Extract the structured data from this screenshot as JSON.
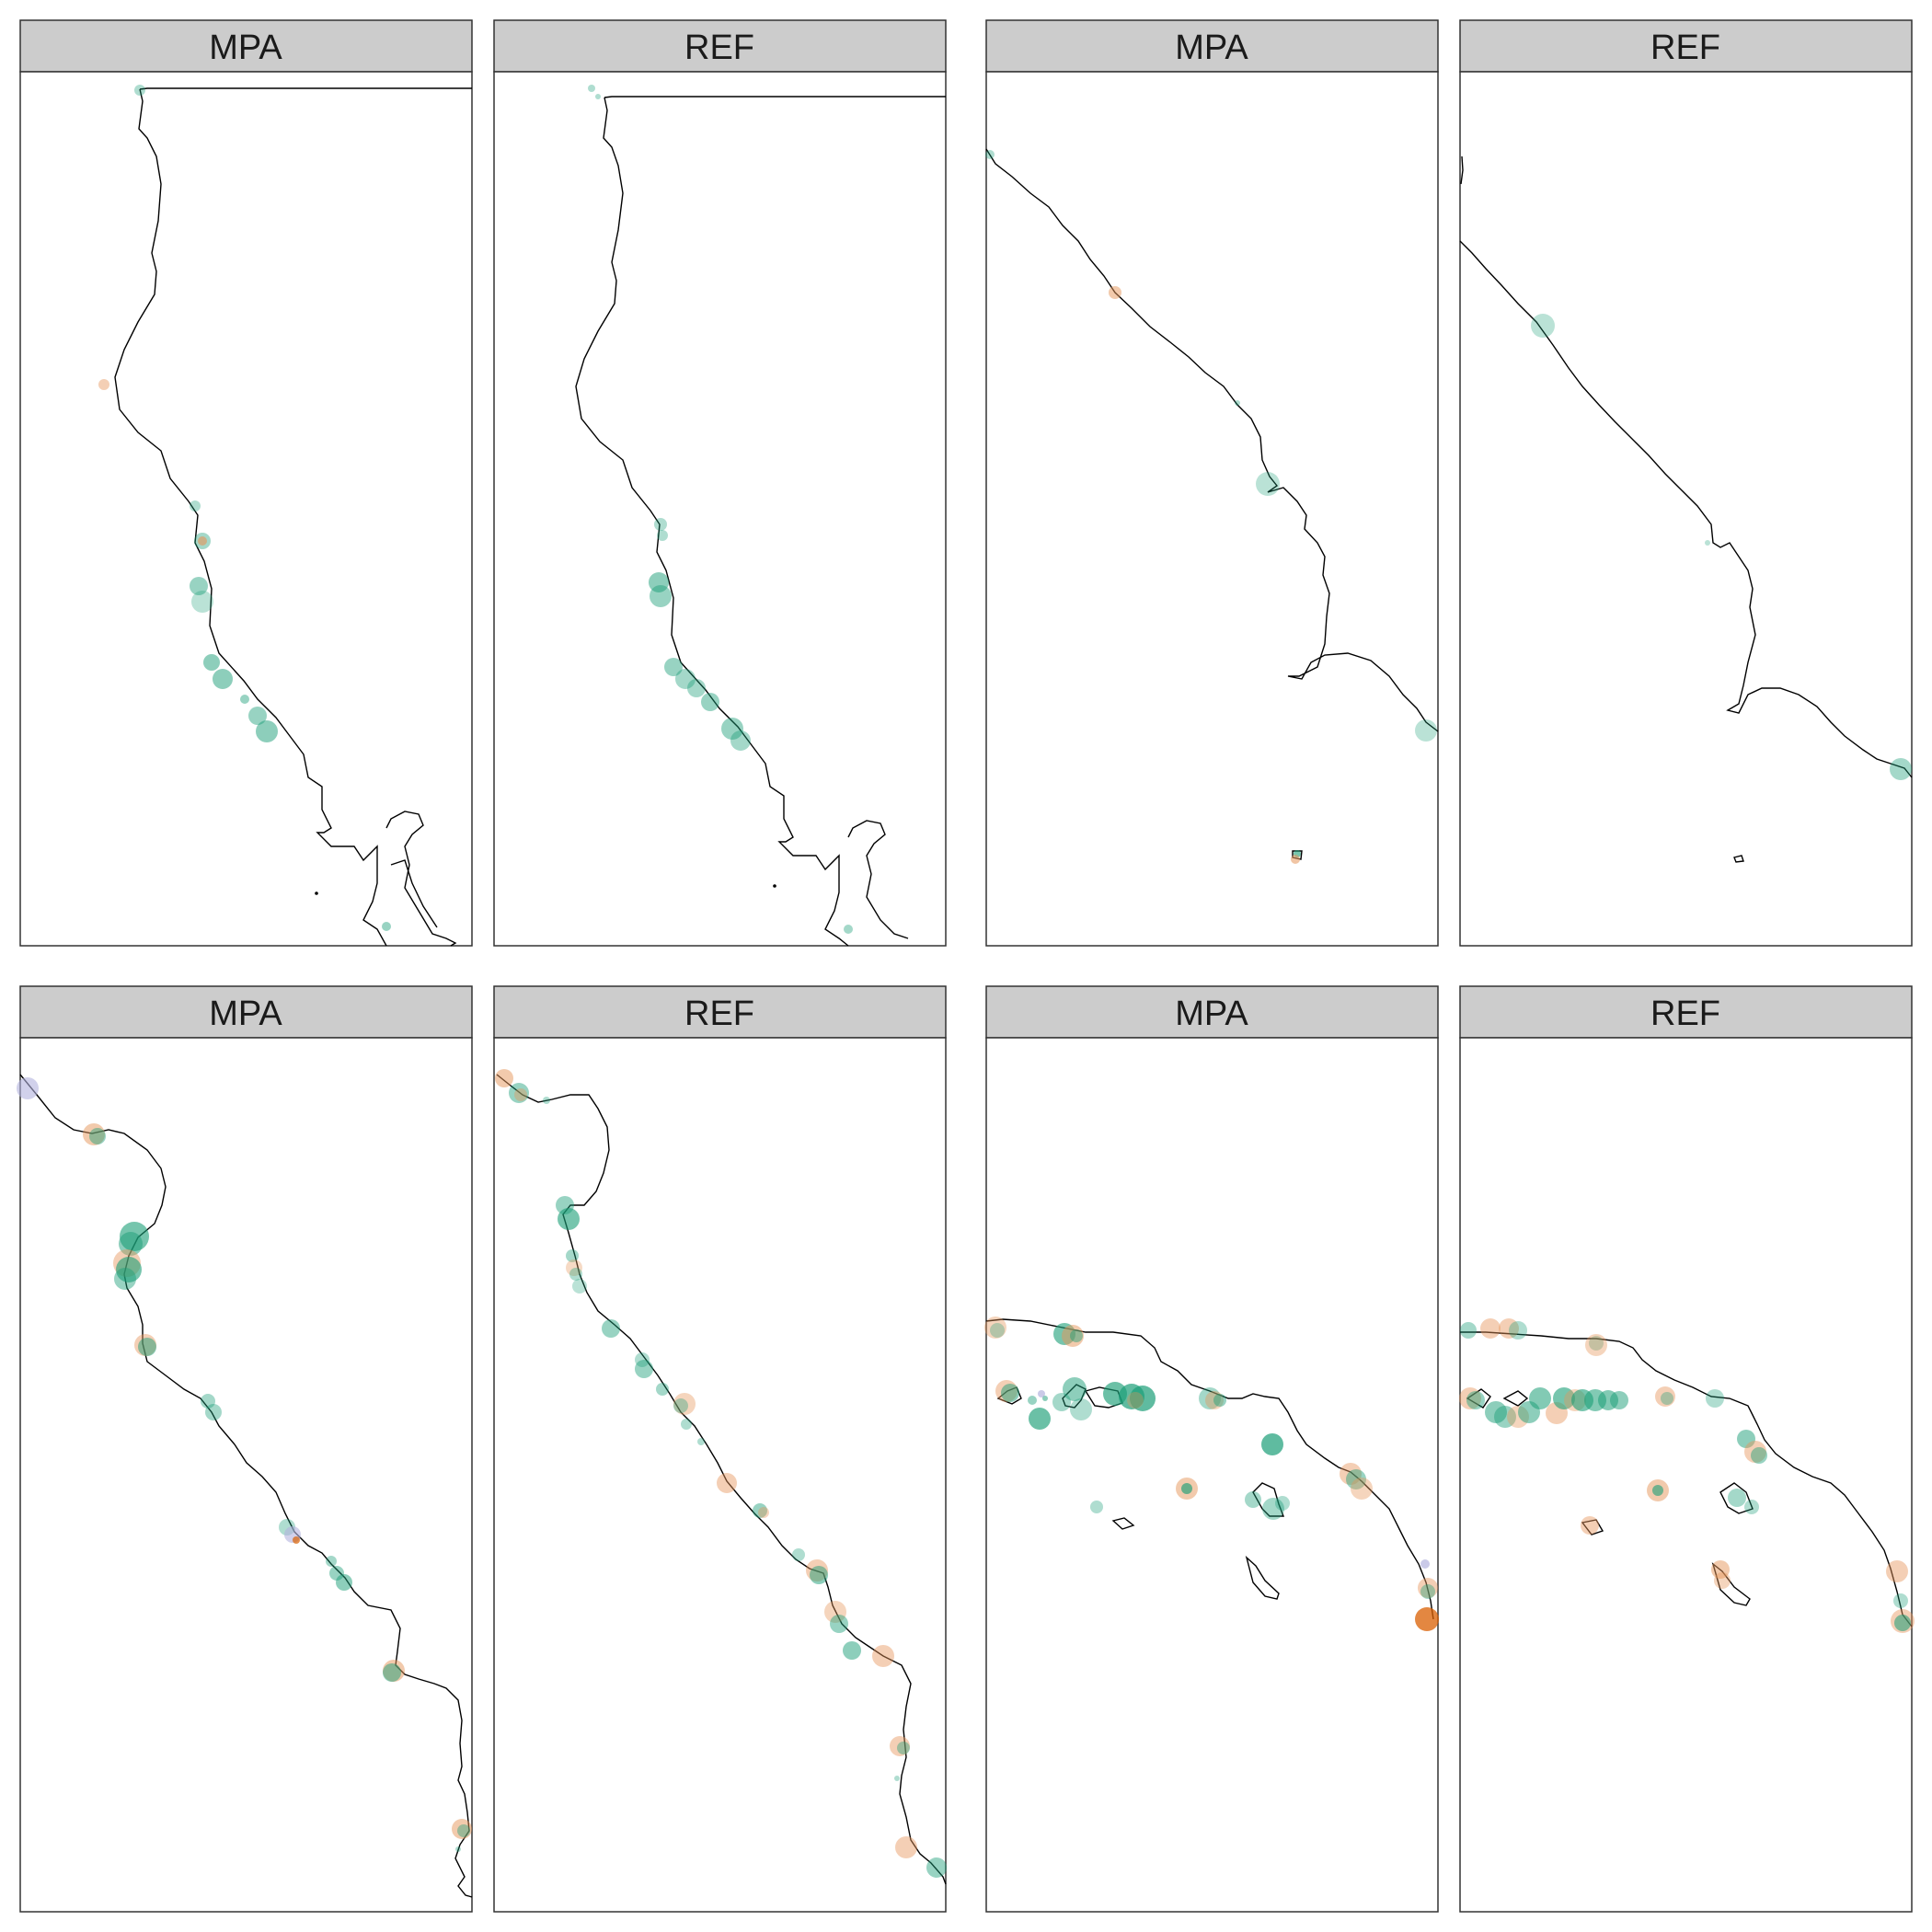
{
  "figure": {
    "rows": 2,
    "panels_per_row": 4
  },
  "colors": {
    "panel_border": "#333333",
    "strip_fill": "#cccccc",
    "coastline": "#000000",
    "point_green": "#1b9e77",
    "point_orange": "#e6955a",
    "point_orange_dark": "#d95f02",
    "point_lavender": "#b3b3de"
  },
  "panels": [
    {
      "id": "r1p1",
      "label": "MPA"
    },
    {
      "id": "r1p2",
      "label": "REF"
    },
    {
      "id": "r1p3",
      "label": "MPA"
    },
    {
      "id": "r1p4",
      "label": "REF"
    },
    {
      "id": "r2p1",
      "label": "MPA"
    },
    {
      "id": "r2p2",
      "label": "REF"
    },
    {
      "id": "r2p3",
      "label": "MPA"
    },
    {
      "id": "r2p4",
      "label": "REF"
    }
  ]
}
